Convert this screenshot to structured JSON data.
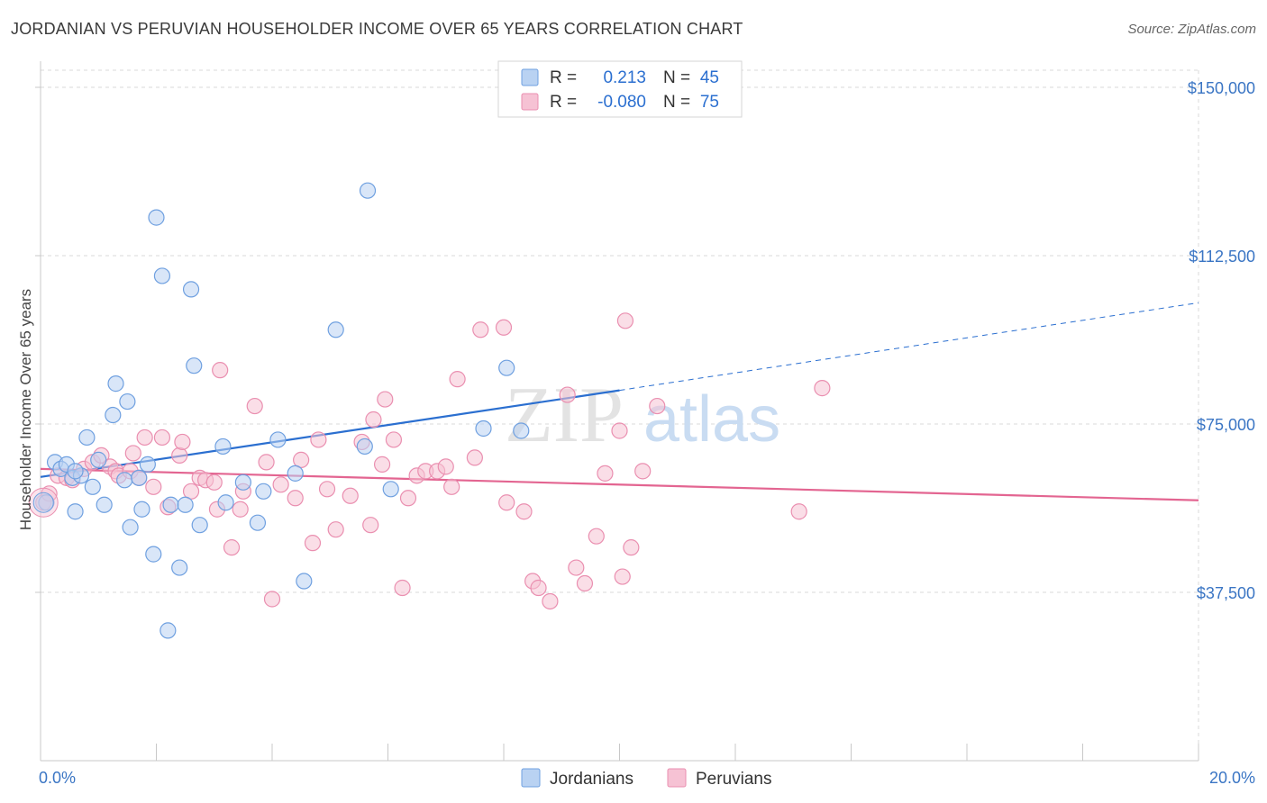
{
  "title": "JORDANIAN VS PERUVIAN HOUSEHOLDER INCOME OVER 65 YEARS CORRELATION CHART",
  "source": "Source: ZipAtlas.com",
  "watermark": {
    "zip": "ZIP",
    "atlas": "atlas"
  },
  "colors": {
    "jordanian": "#6fa0e0",
    "jordanian_fill": "#b9d2f2",
    "jordanian_line": "#2b6fd0",
    "peruvian": "#ea8fb0",
    "peruvian_fill": "#f6c2d4",
    "peruvian_line": "#e36591",
    "axis_label": "#3a75c4",
    "grid": "#d9d9d9"
  },
  "legend_box": {
    "rows": [
      {
        "r_label": "R =",
        "r_value": "0.213",
        "n_label": "N =",
        "n_value": "45"
      },
      {
        "r_label": "R =",
        "r_value": "-0.080",
        "n_label": "N =",
        "n_value": "75"
      }
    ]
  },
  "bottom_legend": [
    "Jordanians",
    "Peruvians"
  ],
  "chart_data": {
    "type": "scatter",
    "title": "JORDANIAN VS PERUVIAN HOUSEHOLDER INCOME OVER 65 YEARS CORRELATION CHART",
    "xlabel": "",
    "ylabel": "Householder Income Over 65 years",
    "xlim": [
      0,
      20
    ],
    "ylim": [
      0,
      150000
    ],
    "x_tick_labels": [
      {
        "value": 0,
        "label": "0.0%"
      },
      {
        "value": 20,
        "label": "20.0%"
      }
    ],
    "y_ticks": [
      {
        "value": 37500,
        "label": "$37,500"
      },
      {
        "value": 75000,
        "label": "$75,000"
      },
      {
        "value": 112500,
        "label": "$112,500"
      },
      {
        "value": 150000,
        "label": "$150,000"
      }
    ],
    "grid": true,
    "legend_placement": "bottom",
    "series": [
      {
        "name": "Jordanians",
        "r": 0.213,
        "n": 45,
        "trend": {
          "x0": 0,
          "y0": 63200,
          "x1": 10,
          "y1": 82500,
          "dashed_to_x": 20,
          "dashed_to_y": 102000
        },
        "points": [
          [
            0.1,
            57500
          ],
          [
            0.25,
            66500
          ],
          [
            0.35,
            65000
          ],
          [
            0.45,
            66000
          ],
          [
            0.55,
            63000
          ],
          [
            0.7,
            63500
          ],
          [
            0.6,
            55500
          ],
          [
            0.8,
            72000
          ],
          [
            0.9,
            61000
          ],
          [
            1.0,
            67000
          ],
          [
            1.1,
            57000
          ],
          [
            1.25,
            77000
          ],
          [
            1.3,
            84000
          ],
          [
            1.45,
            62500
          ],
          [
            1.5,
            80000
          ],
          [
            1.55,
            52000
          ],
          [
            1.7,
            63000
          ],
          [
            1.75,
            56000
          ],
          [
            1.85,
            66000
          ],
          [
            1.95,
            46000
          ],
          [
            2.0,
            121000
          ],
          [
            2.1,
            108000
          ],
          [
            2.2,
            29000
          ],
          [
            2.25,
            57000
          ],
          [
            2.4,
            43000
          ],
          [
            2.5,
            57000
          ],
          [
            2.6,
            105000
          ],
          [
            2.65,
            88000
          ],
          [
            2.75,
            52500
          ],
          [
            3.15,
            70000
          ],
          [
            3.2,
            57500
          ],
          [
            3.5,
            62000
          ],
          [
            3.75,
            53000
          ],
          [
            3.85,
            60000
          ],
          [
            4.1,
            71500
          ],
          [
            4.4,
            64000
          ],
          [
            4.55,
            40000
          ],
          [
            5.1,
            96000
          ],
          [
            5.6,
            70000
          ],
          [
            5.65,
            127000
          ],
          [
            6.05,
            60500
          ],
          [
            7.65,
            74000
          ],
          [
            8.05,
            87500
          ],
          [
            8.3,
            73500
          ],
          [
            0.6,
            64500
          ]
        ]
      },
      {
        "name": "Peruvians",
        "r": -0.08,
        "n": 75,
        "trend": {
          "x0": 0,
          "y0": 65000,
          "x1": 20,
          "y1": 58000
        },
        "points": [
          [
            0.05,
            57500
          ],
          [
            0.15,
            59500
          ],
          [
            0.3,
            63500
          ],
          [
            0.45,
            63000
          ],
          [
            0.55,
            62500
          ],
          [
            0.75,
            65000
          ],
          [
            0.9,
            66500
          ],
          [
            1.05,
            68000
          ],
          [
            1.2,
            65500
          ],
          [
            1.3,
            64500
          ],
          [
            1.35,
            63500
          ],
          [
            1.55,
            64500
          ],
          [
            1.6,
            68500
          ],
          [
            1.7,
            63000
          ],
          [
            1.8,
            72000
          ],
          [
            1.95,
            61000
          ],
          [
            2.1,
            72000
          ],
          [
            2.2,
            56500
          ],
          [
            2.4,
            68000
          ],
          [
            2.45,
            71000
          ],
          [
            2.6,
            60000
          ],
          [
            2.75,
            63000
          ],
          [
            2.85,
            62500
          ],
          [
            3.0,
            62000
          ],
          [
            3.05,
            56000
          ],
          [
            3.1,
            87000
          ],
          [
            3.3,
            47500
          ],
          [
            3.45,
            56000
          ],
          [
            3.5,
            60000
          ],
          [
            3.7,
            79000
          ],
          [
            3.9,
            66500
          ],
          [
            4.0,
            36000
          ],
          [
            4.15,
            61500
          ],
          [
            4.4,
            58500
          ],
          [
            4.5,
            67000
          ],
          [
            4.7,
            48500
          ],
          [
            4.8,
            71500
          ],
          [
            4.95,
            60500
          ],
          [
            5.1,
            51500
          ],
          [
            5.35,
            59000
          ],
          [
            5.55,
            71000
          ],
          [
            5.7,
            52500
          ],
          [
            5.75,
            76000
          ],
          [
            5.9,
            66000
          ],
          [
            5.95,
            80500
          ],
          [
            6.1,
            71500
          ],
          [
            6.25,
            38500
          ],
          [
            6.35,
            58500
          ],
          [
            6.5,
            63500
          ],
          [
            6.65,
            64500
          ],
          [
            6.85,
            64500
          ],
          [
            7.0,
            65500
          ],
          [
            7.1,
            61000
          ],
          [
            7.2,
            85000
          ],
          [
            7.5,
            67500
          ],
          [
            7.6,
            96000
          ],
          [
            8.0,
            96500
          ],
          [
            8.05,
            57500
          ],
          [
            8.35,
            55500
          ],
          [
            8.5,
            40000
          ],
          [
            8.6,
            38500
          ],
          [
            8.8,
            35500
          ],
          [
            9.1,
            81500
          ],
          [
            9.25,
            43000
          ],
          [
            9.4,
            39500
          ],
          [
            9.6,
            50000
          ],
          [
            9.75,
            64000
          ],
          [
            10.0,
            73500
          ],
          [
            10.05,
            41000
          ],
          [
            10.1,
            98000
          ],
          [
            10.2,
            47500
          ],
          [
            10.4,
            64500
          ],
          [
            10.65,
            79000
          ],
          [
            13.1,
            55500
          ],
          [
            13.5,
            83000
          ]
        ]
      }
    ]
  }
}
